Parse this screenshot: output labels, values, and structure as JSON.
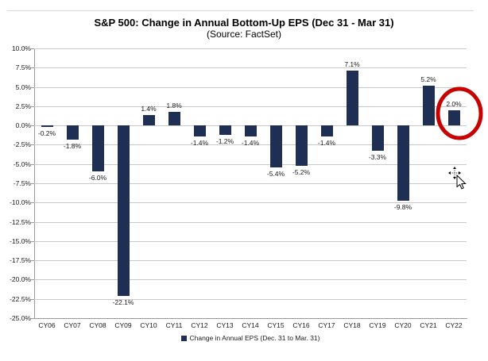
{
  "header": {
    "title": "S&P 500: Change in Annual Bottom-Up EPS (Dec 31 - Mar 31)",
    "subtitle": "(Source: FactSet)"
  },
  "chart_data": {
    "type": "bar",
    "title": "S&P 500: Change in Annual Bottom-Up EPS (Dec 31 - Mar 31)",
    "subtitle": "(Source: FactSet)",
    "categories": [
      "CY06",
      "CY07",
      "CY08",
      "CY09",
      "CY10",
      "CY11",
      "CY12",
      "CY13",
      "CY14",
      "CY15",
      "CY16",
      "CY17",
      "CY18",
      "CY19",
      "CY20",
      "CY21",
      "CY22"
    ],
    "values": [
      -0.2,
      -1.8,
      -6.0,
      -22.1,
      1.4,
      1.8,
      -1.4,
      -1.2,
      -1.4,
      -5.4,
      -5.2,
      -1.4,
      7.1,
      -3.3,
      -9.8,
      5.2,
      2.0
    ],
    "value_labels": [
      "-0.2%",
      "-1.8%",
      "-6.0%",
      "-22.1%",
      "1.4%",
      "1.8%",
      "-1.4%",
      "-1.2%",
      "-1.4%",
      "-5.4%",
      "-5.2%",
      "-1.4%",
      "7.1%",
      "-3.3%",
      "-9.8%",
      "5.2%",
      "2.0%"
    ],
    "ylim": [
      -25,
      10
    ],
    "ytick_step": 2.5,
    "ytick_labels": [
      "10.0%",
      "7.5%",
      "5.0%",
      "2.5%",
      "0.0%",
      "-2.5%",
      "-5.0%",
      "-7.5%",
      "-10.0%",
      "-12.5%",
      "-15.0%",
      "-17.5%",
      "-20.0%",
      "-22.5%",
      "-25.0%"
    ],
    "grid": true,
    "legend": {
      "position": "bottom",
      "label": "Change in Annual EPS (Dec. 31 to Mar. 31)"
    },
    "bar_color": "#1F2F54",
    "annotation": {
      "shape": "ellipse",
      "category": "CY22",
      "color": "#C80000",
      "stroke_width": 5
    }
  },
  "cursor": {
    "style": "move-pointer"
  }
}
